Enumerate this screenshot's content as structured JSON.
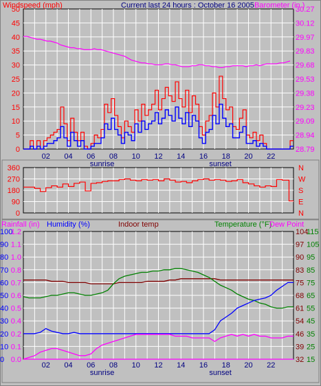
{
  "header": {
    "left": "Windspeed (mph)",
    "center": "Current last 24 hours : October 16 2005",
    "right": "Barometer (in.)"
  },
  "colors": {
    "wind": "#ff0000",
    "gust": "#ff0000",
    "avg": "#0000ff",
    "baro": "#ff00ff",
    "dir": "#ff0000",
    "humidity": "#0000ff",
    "rain": "#ff00ff",
    "indoor": "#800000",
    "temp": "#008000",
    "dew": "#ff00ff",
    "grid": "#ffffff",
    "bg": "#c0c0c0"
  },
  "x_ticks": [
    "02",
    "04",
    "06",
    "08",
    "10",
    "12",
    "14",
    "16",
    "18",
    "20",
    "22"
  ],
  "x_events": {
    "sunrise": "sunrise",
    "sunset": "sunset"
  },
  "chart_data": [
    {
      "type": "line",
      "name": "wind",
      "x": [
        0,
        0.3,
        0.6,
        0.9,
        1.2,
        1.5,
        1.8,
        2.1,
        2.4,
        2.7,
        3.0,
        3.3,
        3.6,
        3.9,
        4.2,
        4.5,
        4.8,
        5.1,
        5.4,
        5.7,
        6.0,
        6.3,
        6.6,
        6.9,
        7.2,
        7.5,
        7.8,
        8.1,
        8.4,
        8.7,
        9.0,
        9.3,
        9.6,
        9.9,
        10.2,
        10.5,
        10.8,
        11.1,
        11.4,
        11.7,
        12.0,
        12.3,
        12.6,
        12.9,
        13.2,
        13.5,
        13.8,
        14.1,
        14.4,
        14.7,
        15.0,
        15.3,
        15.6,
        15.9,
        16.2,
        16.5,
        16.8,
        17.1,
        17.4,
        17.7,
        18.0,
        18.3,
        18.6,
        18.9,
        19.2,
        19.5,
        19.8,
        20.1,
        20.4,
        20.7,
        21.0,
        21.3,
        21.6,
        21.9,
        22.2,
        22.5,
        22.8,
        23.1,
        23.4,
        23.7
      ],
      "gust": [
        0,
        0,
        3,
        0,
        3,
        0,
        3,
        4,
        5,
        6,
        7,
        15,
        9,
        3,
        11,
        6,
        3,
        6,
        1,
        0,
        2,
        5,
        4,
        7,
        16,
        13,
        18,
        12,
        8,
        4,
        10,
        8,
        6,
        14,
        10,
        16,
        12,
        14,
        16,
        21,
        14,
        18,
        22,
        19,
        17,
        24,
        18,
        15,
        21,
        13,
        19,
        16,
        8,
        5,
        10,
        12,
        20,
        15,
        26,
        18,
        14,
        15,
        8,
        7,
        11,
        14,
        5,
        4,
        6,
        3,
        5,
        2,
        0,
        0,
        0,
        0,
        0,
        0,
        0,
        3
      ],
      "avg": [
        0,
        0,
        1,
        0,
        1,
        0,
        1,
        2,
        2,
        3,
        4,
        8,
        4,
        1,
        6,
        3,
        1,
        3,
        0,
        0,
        1,
        2,
        2,
        4,
        9,
        7,
        11,
        7,
        5,
        2,
        6,
        5,
        3,
        9,
        6,
        10,
        7,
        9,
        10,
        13,
        9,
        11,
        14,
        12,
        10,
        15,
        11,
        9,
        13,
        8,
        12,
        10,
        4,
        2,
        6,
        7,
        12,
        9,
        16,
        11,
        8,
        9,
        4,
        4,
        6,
        8,
        2,
        2,
        3,
        1,
        2,
        1,
        0,
        0,
        0,
        0,
        0,
        0,
        0,
        1
      ],
      "baro_values": [
        29.98,
        29.98,
        29.97,
        29.96,
        29.95,
        29.95,
        29.94,
        29.93,
        29.93,
        29.92,
        29.91,
        29.89,
        29.88,
        29.87,
        29.86,
        29.86,
        29.85,
        29.85,
        29.84,
        29.84,
        29.84,
        29.85,
        29.84,
        29.84,
        29.83,
        29.82,
        29.81,
        29.8,
        29.79,
        29.78,
        29.77,
        29.75,
        29.73,
        29.72,
        29.71,
        29.7,
        29.7,
        29.69,
        29.69,
        29.68,
        29.68,
        29.68,
        29.69,
        29.69,
        29.68,
        29.68,
        29.67,
        29.66,
        29.66,
        29.66,
        29.67,
        29.67,
        29.68,
        29.68,
        29.67,
        29.67,
        29.66,
        29.66,
        29.65,
        29.65,
        29.66,
        29.66,
        29.67,
        29.67,
        29.67,
        29.67,
        29.66,
        29.67,
        29.67,
        29.68,
        29.67,
        29.68,
        29.69,
        29.69,
        29.69,
        29.69,
        29.7,
        29.7,
        29.71,
        29.72
      ],
      "ylim": [
        0,
        50
      ],
      "baro_ylim": [
        28.79,
        30.27
      ],
      "y_ticks": [
        "0",
        "5",
        "10",
        "15",
        "20",
        "25",
        "30",
        "35",
        "40",
        "45",
        "50"
      ],
      "baro_ticks": [
        "28.79",
        "28.94",
        "29.09",
        "29.23",
        "29.38",
        "29.53",
        "29.68",
        "29.83",
        "29.97",
        "30.12",
        "30.27"
      ]
    },
    {
      "type": "line",
      "name": "wind direction",
      "x": [
        0,
        0.5,
        1,
        1.5,
        2,
        2.5,
        3,
        3.5,
        4,
        4.5,
        5,
        5.5,
        6,
        6.5,
        7,
        7.5,
        8,
        8.5,
        9,
        9.5,
        10,
        10.5,
        11,
        11.5,
        12,
        12.5,
        13,
        13.5,
        14,
        14.5,
        15,
        15.5,
        16,
        16.5,
        17,
        17.5,
        18,
        18.5,
        19,
        19.5,
        20,
        20.5,
        21,
        21.5,
        22,
        22.5,
        23,
        23.3,
        23.6
      ],
      "values": [
        205,
        205,
        195,
        170,
        200,
        215,
        205,
        230,
        210,
        235,
        245,
        175,
        235,
        240,
        250,
        255,
        255,
        265,
        270,
        260,
        255,
        265,
        260,
        265,
        255,
        270,
        260,
        245,
        250,
        240,
        255,
        265,
        270,
        260,
        265,
        260,
        250,
        255,
        265,
        240,
        230,
        215,
        205,
        215,
        210,
        265,
        260,
        260,
        95
      ],
      "ylim": [
        0,
        360
      ],
      "y_ticks": [
        "0",
        "90",
        "180",
        "270",
        "360"
      ],
      "compass": [
        "N",
        "E",
        "S",
        "W",
        "N"
      ]
    },
    {
      "type": "line",
      "name": "climate",
      "x": [
        0,
        0.5,
        1,
        1.5,
        2,
        2.5,
        3,
        3.5,
        4,
        4.5,
        5,
        5.5,
        6,
        6.5,
        7,
        7.5,
        8,
        8.5,
        9,
        9.5,
        10,
        10.5,
        11,
        11.5,
        12,
        12.5,
        13,
        13.5,
        14,
        14.5,
        15,
        15.5,
        16,
        16.5,
        17,
        17.5,
        18,
        18.5,
        19,
        19.5,
        20,
        20.5,
        21,
        21.5,
        22,
        22.5,
        23,
        23.5
      ],
      "humidity": [
        20,
        20,
        20,
        21,
        24,
        22,
        21,
        20,
        20,
        21,
        20,
        20,
        20,
        20,
        20,
        20,
        20,
        20,
        20,
        20,
        20,
        20,
        20,
        20,
        20,
        20,
        20,
        20,
        20,
        20,
        20,
        20,
        20,
        20,
        23,
        30,
        33,
        36,
        40,
        42,
        44,
        46,
        47,
        48,
        50,
        54,
        57,
        60
      ],
      "dewpoint": [
        32,
        33,
        34,
        36,
        37,
        38,
        38,
        37,
        36,
        35,
        34,
        34,
        35,
        38,
        40,
        41,
        42,
        43,
        44,
        45,
        46,
        46,
        46,
        46,
        46,
        46,
        46,
        45,
        45,
        45,
        44,
        44,
        44,
        44,
        42,
        44,
        45,
        46,
        45,
        46,
        45,
        46,
        45,
        45,
        44,
        44,
        44,
        45
      ],
      "temperature": [
        64,
        63,
        63,
        63,
        64,
        65,
        65,
        66,
        67,
        67,
        66,
        65,
        65,
        66,
        67,
        69,
        74,
        78,
        80,
        81,
        82,
        83,
        83,
        84,
        84,
        85,
        85,
        86,
        86,
        85,
        84,
        83,
        81,
        79,
        76,
        73,
        71,
        69,
        66,
        64,
        62,
        61,
        59,
        58,
        56,
        55,
        55,
        56
      ],
      "indoor": [
        77,
        77,
        77,
        77,
        77,
        76,
        76,
        76,
        75,
        75,
        75,
        75,
        74,
        74,
        74,
        74,
        74,
        75,
        75,
        75,
        75,
        75,
        76,
        76,
        76,
        76,
        77,
        77,
        78,
        78,
        78,
        78,
        78,
        78,
        78,
        77,
        77,
        77,
        77,
        77,
        77,
        77,
        77,
        77,
        77,
        77,
        77,
        77
      ],
      "rain_values": [
        0,
        0,
        0,
        0,
        0,
        0,
        0,
        0,
        0,
        0,
        0,
        0,
        0,
        0,
        0,
        0,
        0,
        0,
        0,
        0,
        0,
        0,
        0,
        0,
        0,
        0,
        0,
        0,
        0,
        0,
        0,
        0,
        0,
        0,
        0,
        0,
        0,
        0,
        0,
        0,
        0,
        0,
        0,
        0,
        0,
        0,
        0,
        0
      ],
      "ylim_humidity": [
        0,
        100
      ],
      "ylim_temp": [
        15,
        115
      ],
      "ylim_dew": [
        32,
        104
      ],
      "labels": {
        "rainfall": "Rainfall (in)",
        "humidity": "Humidity (%)",
        "indoor": "Indoor temp",
        "temperature": "Temperature (°F)",
        "dewpoint": "Dew Point"
      },
      "humidity_ticks": [
        "0",
        "10",
        "20",
        "30",
        "40",
        "50",
        "60",
        "70",
        "80",
        "90",
        "100"
      ],
      "rain_ticks": [
        "0.0",
        "0.1",
        "0.2",
        "0.4",
        "0.5",
        "0.6",
        "0.7",
        "0.8",
        "1.0",
        "1.1",
        "1.2"
      ],
      "dew_ticks": [
        "32",
        "39",
        "46",
        "54",
        "61",
        "68",
        "75",
        "83",
        "90",
        "97",
        "104"
      ],
      "temp_ticks": [
        "15",
        "25",
        "35",
        "45",
        "55",
        "65",
        "75",
        "85",
        "95",
        "105",
        "115"
      ]
    }
  ]
}
